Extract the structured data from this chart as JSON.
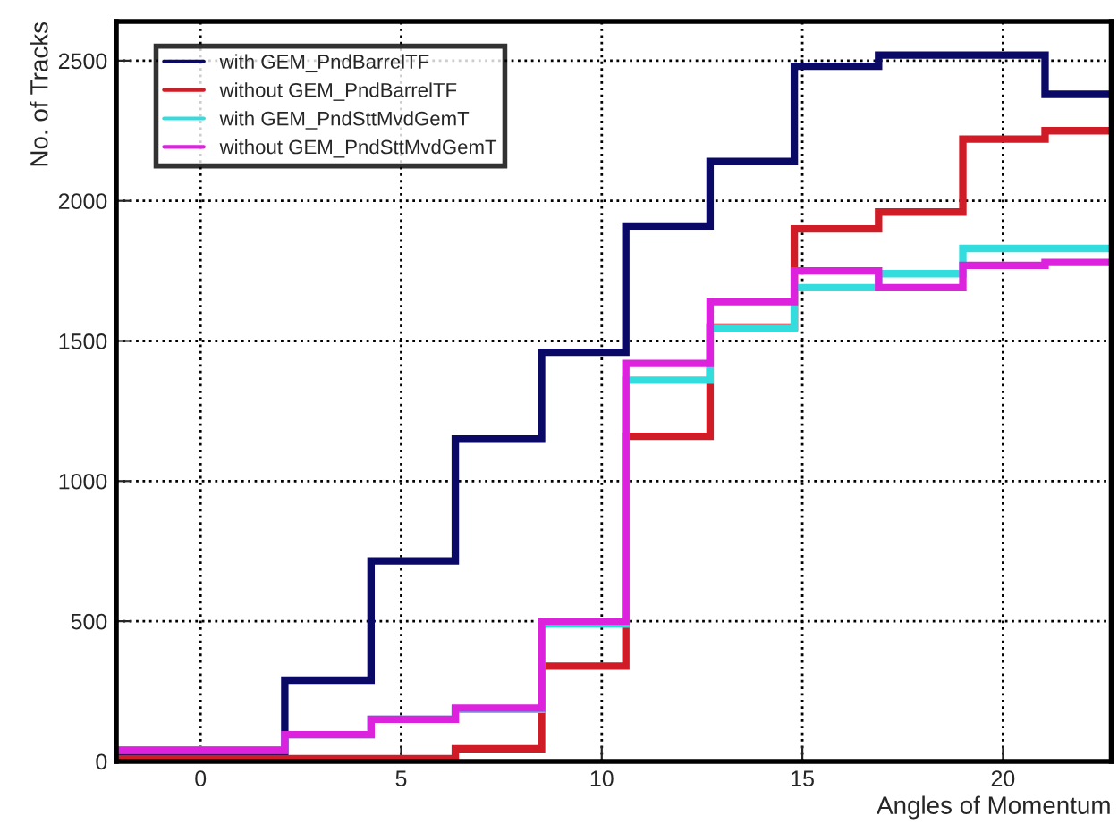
{
  "chart_data": {
    "type": "histogram",
    "xlabel": "Angles of Momentum",
    "ylabel": "No. of Tracks",
    "bins": [
      -2.1,
      0,
      2.1,
      4.25,
      6.35,
      8.5,
      10.6,
      12.7,
      14.8,
      16.9,
      19.0,
      21.05,
      22.7
    ],
    "series": [
      {
        "name": "with GEM_PndBarrelTF",
        "color": "#0a0a66",
        "values": [
          20,
          20,
          290,
          715,
          1150,
          1460,
          1910,
          2140,
          2480,
          2520,
          2520,
          2380
        ]
      },
      {
        "name": "without GEM_PndBarrelTF",
        "color": "#d01c26",
        "values": [
          10,
          10,
          10,
          10,
          45,
          340,
          1160,
          1550,
          1900,
          1960,
          2220,
          2250
        ]
      },
      {
        "name": "with GEM_PndSttMvdGemT",
        "color": "#33dddd",
        "values": [
          40,
          40,
          95,
          150,
          185,
          490,
          1360,
          1545,
          1690,
          1740,
          1830,
          1830
        ]
      },
      {
        "name": "without GEM_PndSttMvdGemT",
        "color": "#dd22dd",
        "values": [
          40,
          40,
          95,
          150,
          190,
          500,
          1420,
          1640,
          1750,
          1690,
          1770,
          1780
        ]
      }
    ],
    "xlim": [
      -2.1,
      22.7
    ],
    "ylim": [
      0,
      2640
    ],
    "xticks": [
      0,
      5,
      10,
      15,
      20
    ],
    "yticks": [
      0,
      500,
      1000,
      1500,
      2000,
      2500
    ],
    "grid": true,
    "legend": "top left",
    "line_style": "solid"
  }
}
